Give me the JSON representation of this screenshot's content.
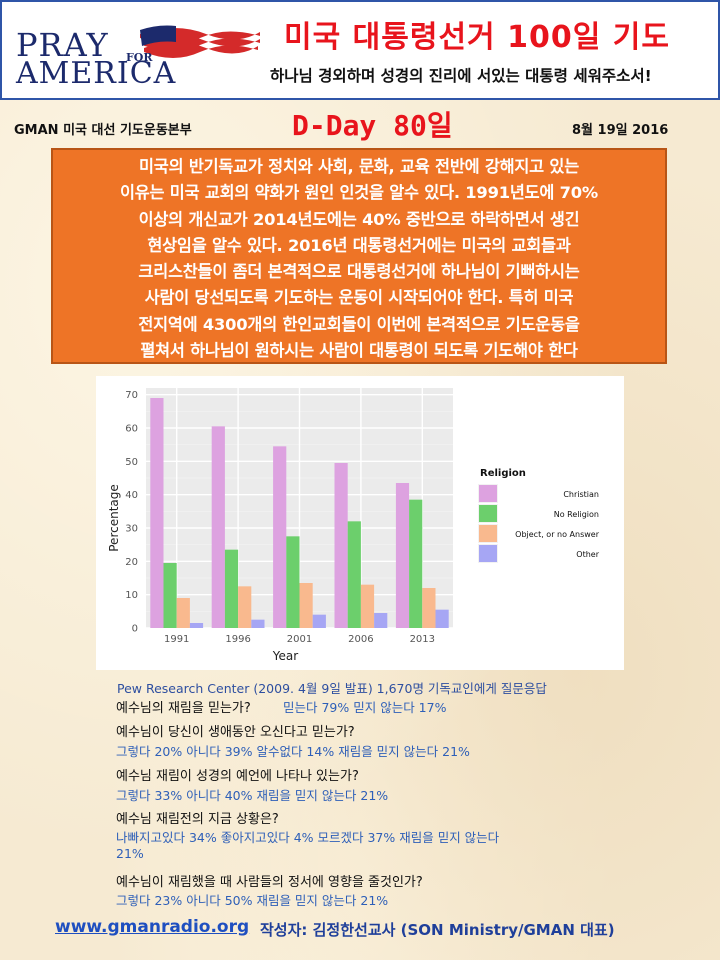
{
  "header": {
    "logo_pray": "PRAY",
    "logo_for": "FOR",
    "logo_america": "AMERICA",
    "title": "미국 대통령선거 100일 기도",
    "subtitle": "하나님 경외하며 성경의 진리에 서있는 대통령 세워주소서!"
  },
  "info": {
    "org": "GMAN 미국 대선 기도운동본부",
    "dday": "D-Day 80일",
    "date": "8월 19일 2016"
  },
  "intro": {
    "lines": [
      "미국의 반기독교가 정치와 사회, 문화, 교육 전반에 강해지고 있는",
      "이유는 미국 교회의 약화가 원인 인것을 알수 있다. 1991년도에 70%",
      "이상의 개신교가 2014년도에는 40% 중반으로 하락하면서 생긴",
      "현상임을 알수 있다. 2016년 대통령선거에는 미국의 교회들과",
      "크리스찬들이 좀더 본격적으로 대통령선거에 하나님이 기뻐하시는",
      "사람이 당선되도록 기도하는 운동이 시작되어야 한다. 특히 미국",
      "전지역에 4300개의 한인교회들이 이번에 본격적으로 기도운동을",
      "펼쳐서 하나님이 원하시는 사람이 대통령이 되도록 기도해야 한다"
    ]
  },
  "chart_data": {
    "type": "bar",
    "categories": [
      "1991",
      "1996",
      "2001",
      "2006",
      "2013"
    ],
    "series": [
      {
        "name": "Christian",
        "color": "#dda2e0",
        "values": [
          69,
          60.5,
          54.5,
          49.5,
          43.5
        ]
      },
      {
        "name": "No Religion",
        "color": "#6ccf6c",
        "values": [
          19.5,
          23.5,
          27.5,
          32,
          38.5
        ]
      },
      {
        "name": "Object, or no Answer",
        "color": "#f9b98e",
        "values": [
          9,
          12.5,
          13.5,
          13,
          12
        ]
      },
      {
        "name": "Other",
        "color": "#a6a6f4",
        "values": [
          1.5,
          2.5,
          4,
          4.5,
          5.5
        ]
      }
    ],
    "xlabel": "Year",
    "ylabel": "Percentage",
    "yticks": [
      0,
      10,
      20,
      30,
      40,
      50,
      60,
      70
    ],
    "ylim": [
      0,
      72
    ],
    "legend_title": "Religion",
    "legend_position": "right",
    "grid": true
  },
  "survey": {
    "source": "Pew Research Center (2009. 4월 9일 발표) 1,670명 기독교인에게 질문응답",
    "items": [
      {
        "q": "예수님의 재림을 믿는가?",
        "a": "믿는다 79%  믿지 않는다 17%"
      },
      {
        "q": "예수님이 당신이 생애동안 오신다고 믿는가?",
        "a": "그렇다 20%  아니다 39%  알수없다 14%   재림을 믿지 않는다 21%"
      },
      {
        "q": "예수님 재림이 성경의 예언에 나타나 있는가?",
        "a": "그렇다 33%  아니다 40%  재림을 믿지 않는다 21%"
      },
      {
        "q": "예수님 재림전의 지금 상황은?",
        "a": "나빠지고있다 34%  좋아지고있다 4%  모르겠다 37% 재림을 믿지 않는다",
        "a2": "21%"
      },
      {
        "q": "예수님이 재림했을 때 사람들의 정서에 영향을 줄것인가?",
        "a": "그렇다 23%  아니다 50%  재림을 믿지 않는다 21%"
      }
    ]
  },
  "footer": {
    "url": "www.gmanradio.org",
    "author": "작성자: 김정한선교사 (SON Ministry/GMAN 대표)"
  }
}
